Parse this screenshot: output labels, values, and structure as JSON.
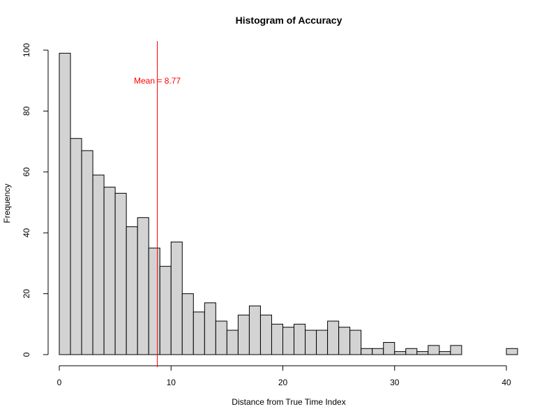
{
  "chart_data": {
    "type": "bar",
    "title": "Histogram of Accuracy",
    "xlabel": "Distance from True Time Index",
    "ylabel": "Frequency",
    "bin_width": 1,
    "bin_edges_start": 0,
    "values": [
      99,
      71,
      67,
      59,
      55,
      53,
      42,
      45,
      35,
      29,
      37,
      20,
      14,
      17,
      11,
      8,
      13,
      16,
      13,
      10,
      9,
      10,
      8,
      8,
      11,
      9,
      8,
      2,
      2,
      4,
      1,
      2,
      1,
      3,
      1,
      3,
      0,
      0,
      0,
      0,
      2
    ],
    "xlim": [
      0,
      41
    ],
    "ylim": [
      0,
      100
    ],
    "x_ticks": [
      0,
      10,
      20,
      30,
      40
    ],
    "y_ticks": [
      0,
      20,
      40,
      60,
      80,
      100
    ],
    "bar_fill": "#d3d3d3",
    "bar_stroke": "#000000",
    "mean_line": {
      "value": 8.77,
      "label": "Mean = 8.77",
      "color": "#ff0000"
    }
  }
}
